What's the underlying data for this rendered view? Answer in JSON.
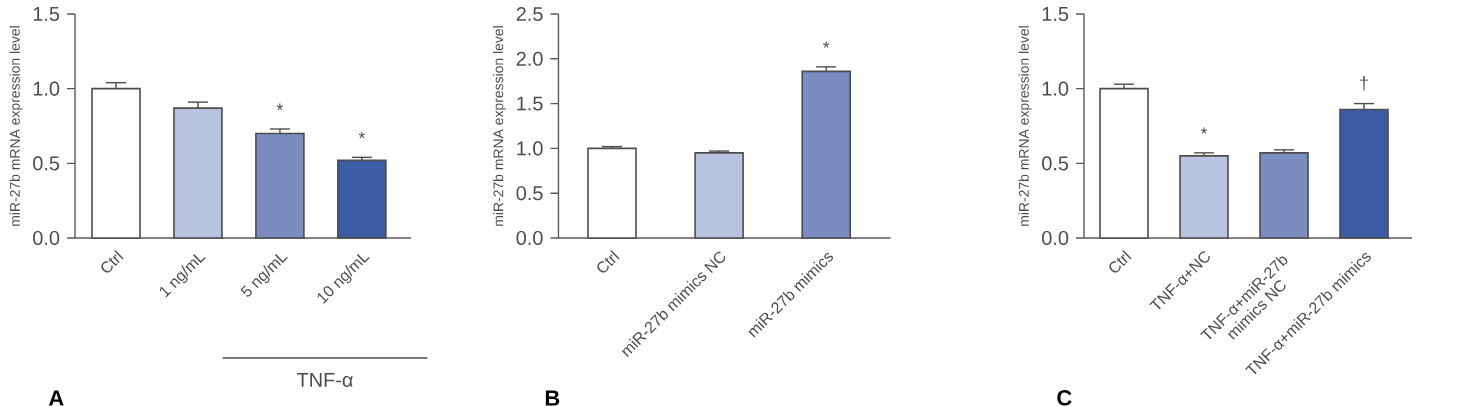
{
  "chart_data": [
    {
      "type": "bar",
      "title": "A",
      "ylabel": "miR-27b mRNA expression level",
      "categories": [
        "Ctrl",
        "1 ng/mL",
        "5 ng/mL",
        "10 ng/mL"
      ],
      "values": [
        1.0,
        0.87,
        0.7,
        0.52
      ],
      "errors": [
        0.04,
        0.04,
        0.03,
        0.02
      ],
      "colors": [
        "#ffffff",
        "#b8c3e0",
        "#7a8cc0",
        "#3d5ca6"
      ],
      "ylim": [
        0,
        1.5
      ],
      "yticks": [
        {
          "value": 0,
          "label": "0.0"
        },
        {
          "value": 0.5,
          "label": "0.5"
        },
        {
          "value": 1,
          "label": "1.0"
        },
        {
          "value": 1.5,
          "label": "1.5"
        }
      ],
      "annotations": [
        {
          "text": "*",
          "x": "5 ng/mL",
          "y": 0.7
        },
        {
          "text": "*",
          "x": "10 ng/mL",
          "y": 0.52
        },
        "TNF-α"
      ]
    },
    {
      "type": "bar",
      "title": "B",
      "ylabel": "miR-27b mRNA expression level",
      "categories": [
        "Ctrl",
        "miR-27b mimics NC",
        "miR-27b mimics"
      ],
      "values": [
        1.0,
        0.95,
        1.86
      ],
      "errors": [
        0.02,
        0.02,
        0.05
      ],
      "colors": [
        "#ffffff",
        "#b8c3e0",
        "#7a8cc0"
      ],
      "ylim": [
        0,
        2.5
      ],
      "yticks": [
        {
          "value": 0,
          "label": "0.0"
        },
        {
          "value": 0.5,
          "label": "0.5"
        },
        {
          "value": 1,
          "label": "1.0"
        },
        {
          "value": 1.5,
          "label": "1.5"
        },
        {
          "value": 2,
          "label": "2.0"
        },
        {
          "value": 2.5,
          "label": "2.5"
        }
      ],
      "annotations": [
        {
          "text": "*",
          "x": "miR-27b mimics",
          "y": 1.86
        }
      ]
    },
    {
      "type": "bar",
      "title": "C",
      "ylabel": "miR-27b mRNA expression level",
      "categories": [
        "Ctrl",
        "TNF-α+NC",
        "TNF-α+miR-27b mimics NC",
        "TNF-α+miR-27b mimics"
      ],
      "values": [
        1.0,
        0.55,
        0.57,
        0.86
      ],
      "errors": [
        0.03,
        0.02,
        0.02,
        0.04
      ],
      "colors": [
        "#ffffff",
        "#b8c3e0",
        "#7a8cc0",
        "#3d5ca6"
      ],
      "ylim": [
        0,
        1.5
      ],
      "yticks": [
        {
          "value": 0,
          "label": "0.0"
        },
        {
          "value": 0.5,
          "label": "0.5"
        },
        {
          "value": 1,
          "label": "1.0"
        },
        {
          "value": 1.5,
          "label": "1.5"
        }
      ],
      "annotations": [
        {
          "text": "*",
          "x": "TNF-α+NC",
          "y": 0.55
        },
        {
          "text": "†",
          "x": "TNF-α+miR-27b mimics",
          "y": 0.86
        }
      ]
    }
  ]
}
